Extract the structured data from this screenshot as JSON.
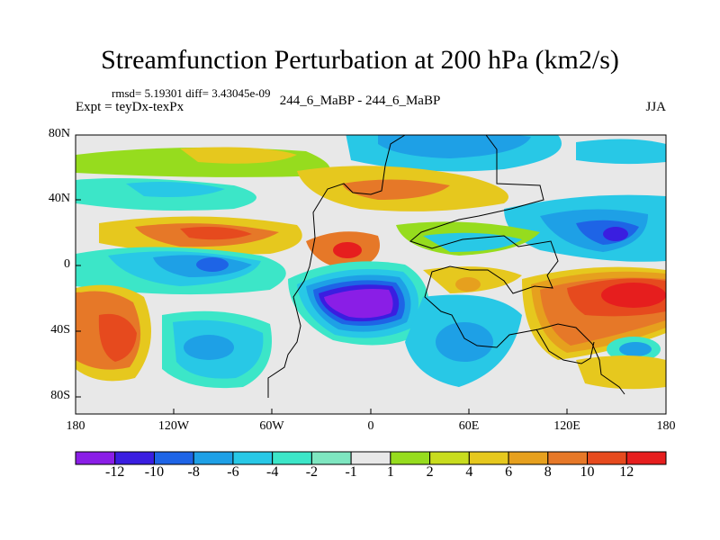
{
  "title": "Streamfunction Perturbation at 200 hPa (km2/s)",
  "stats": "rmsd= 5.19301 diff= 3.43045e-09",
  "left_string": "Expt = teyDx-texPx",
  "center_string": "244_6_MaBP - 244_6_MaBP",
  "right_string": "JJA",
  "y_ticks": [
    "80N",
    "40N",
    "0",
    "40S",
    "80S"
  ],
  "x_ticks": [
    "180",
    "120W",
    "60W",
    "0",
    "60E",
    "120E",
    "180"
  ],
  "colorbar": {
    "labels": [
      "-12",
      "-10",
      "-8",
      "-6",
      "-4",
      "-2",
      "-1",
      "1",
      "2",
      "4",
      "6",
      "8",
      "10",
      "12"
    ],
    "colors": [
      "#8a1ee6",
      "#3a1ee0",
      "#1e64e6",
      "#1ea0e6",
      "#28c8e6",
      "#3ce6c8",
      "#7ee6c0",
      "#e8e8e8",
      "#96dc1e",
      "#c8dc1e",
      "#e6c81e",
      "#e6a01e",
      "#e67828",
      "#e64a1e",
      "#e61e1e"
    ]
  },
  "fill_colors": {
    "background": "#e8e8e8",
    "purple": "#8a1ee6",
    "blue": "#3a1ee0",
    "mid_blue": "#1e64e6",
    "light_blue": "#1ea0e6",
    "cyan": "#28c8e6",
    "aqua": "#3ce6c8",
    "green": "#96dc1e",
    "yellow_green": "#c8dc1e",
    "yellow": "#e6c81e",
    "orange": "#e6a01e",
    "dark_orange": "#e67828",
    "red_orange": "#e64a1e",
    "red": "#e61e1e"
  }
}
